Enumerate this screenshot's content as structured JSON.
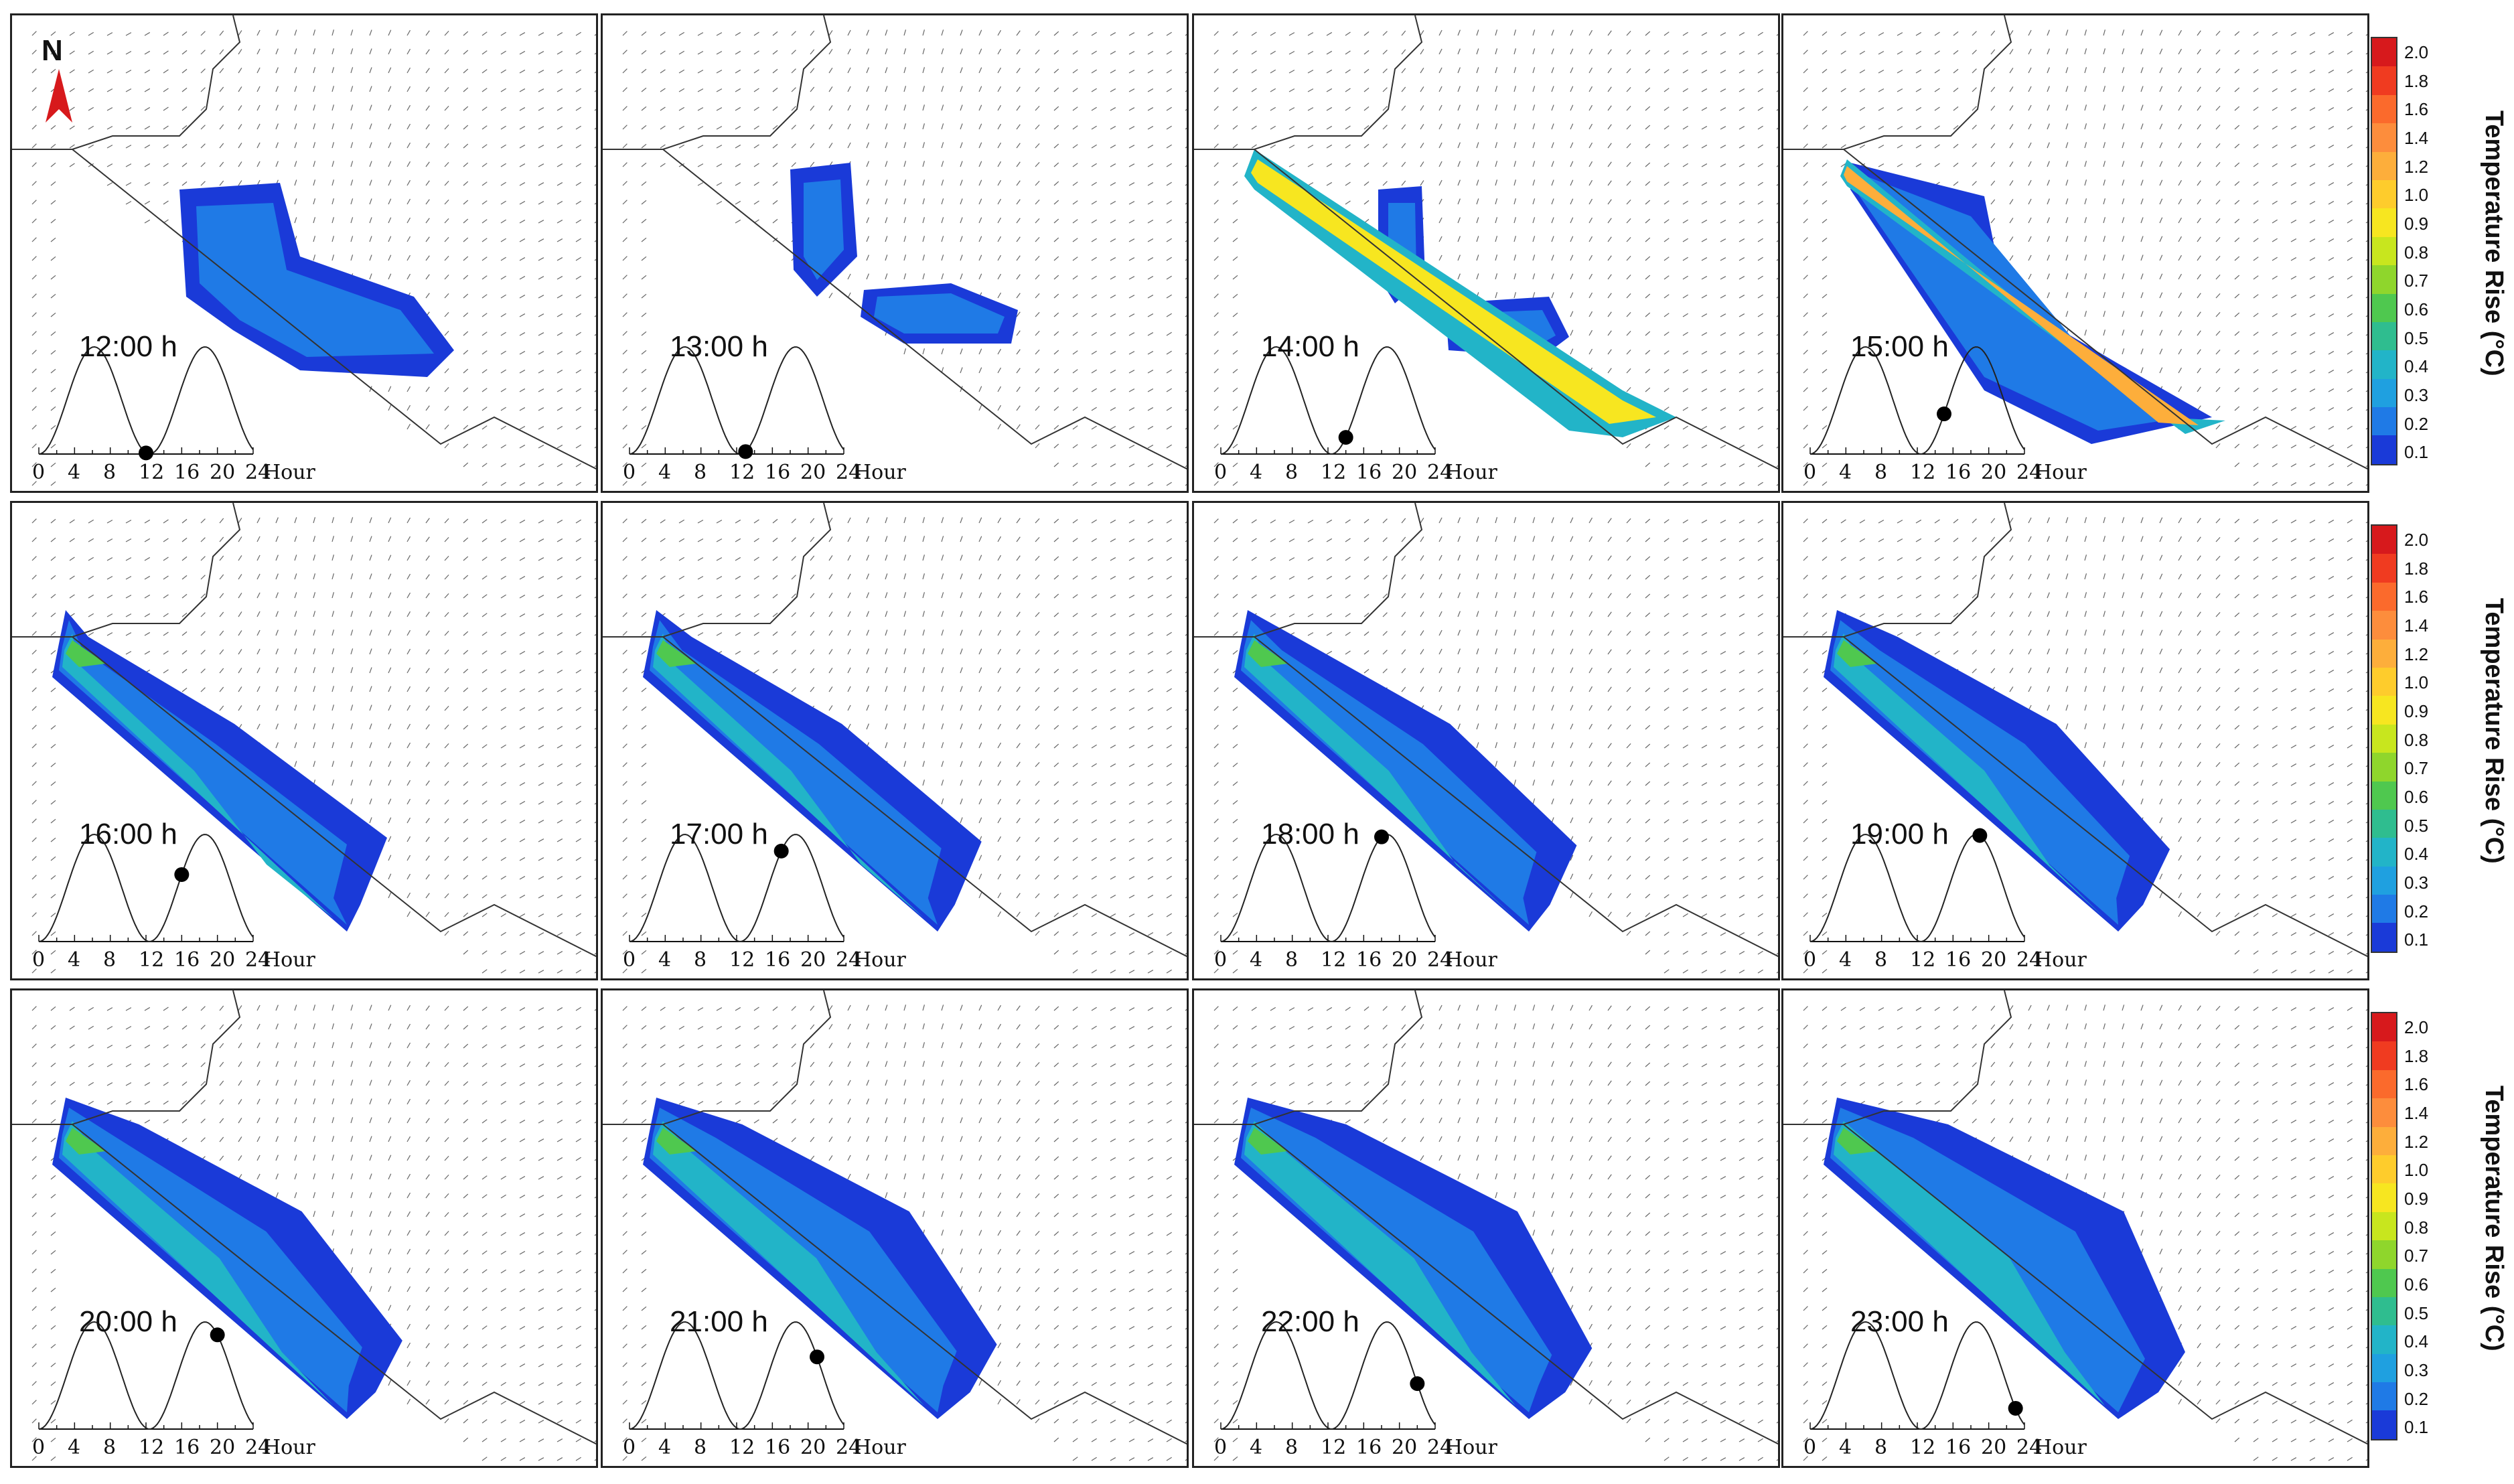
{
  "north_label": "N",
  "hour_axis_label": "Hour",
  "hour_ticks": [
    "0",
    "4",
    "8",
    "12",
    "16",
    "20",
    "24"
  ],
  "colorbar": {
    "title": "Temperature Rise (°C)",
    "levels": [
      "2.0",
      "1.8",
      "1.6",
      "1.4",
      "1.2",
      "1.0",
      "0.9",
      "0.8",
      "0.7",
      "0.6",
      "0.5",
      "0.4",
      "0.3",
      "0.2",
      "0.1"
    ],
    "colors": [
      "#d7191c",
      "#f03b20",
      "#fb6a2c",
      "#fd8d3c",
      "#fdae3b",
      "#fecc2c",
      "#f7e620",
      "#c8e61e",
      "#8fd62c",
      "#4fc84f",
      "#2fbd8f",
      "#22b4c8",
      "#1fa0e0",
      "#1f7ae6",
      "#1a3ad8"
    ]
  },
  "panels": [
    {
      "time": "12:00 h",
      "dot_hour": 12
    },
    {
      "time": "13:00 h",
      "dot_hour": 13
    },
    {
      "time": "14:00 h",
      "dot_hour": 14
    },
    {
      "time": "15:00 h",
      "dot_hour": 15
    },
    {
      "time": "16:00 h",
      "dot_hour": 16
    },
    {
      "time": "17:00 h",
      "dot_hour": 17
    },
    {
      "time": "18:00 h",
      "dot_hour": 18
    },
    {
      "time": "19:00 h",
      "dot_hour": 19
    },
    {
      "time": "20:00 h",
      "dot_hour": 20
    },
    {
      "time": "21:00 h",
      "dot_hour": 21
    },
    {
      "time": "22:00 h",
      "dot_hour": 22
    },
    {
      "time": "23:00 h",
      "dot_hour": 23
    }
  ]
}
